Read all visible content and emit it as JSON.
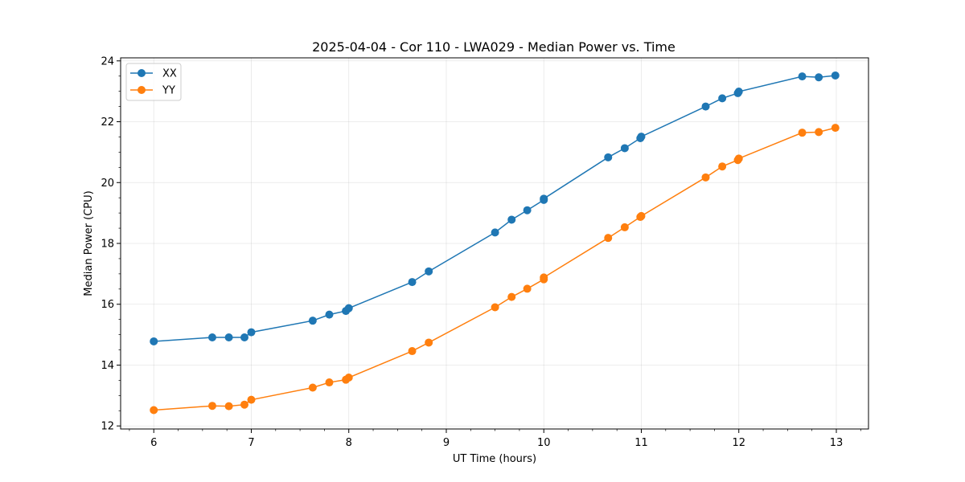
{
  "chart_data": {
    "type": "line",
    "title": "2025-04-04 - Cor 110 - LWA029 - Median Power vs. Time",
    "xlabel": "UT Time (hours)",
    "ylabel": "Median Power (CPU)",
    "xlim": [
      5.66,
      13.33
    ],
    "ylim": [
      11.9,
      24.1
    ],
    "xticks": [
      6,
      7,
      8,
      9,
      10,
      11,
      12,
      13
    ],
    "yticks": [
      12,
      14,
      16,
      18,
      20,
      22,
      24
    ],
    "grid": true,
    "legend_position": "top-left",
    "series": [
      {
        "name": "XX",
        "color": "#1f77b4",
        "x": [
          6.0,
          6.6,
          6.77,
          6.93,
          7.0,
          7.63,
          7.8,
          7.97,
          8.0,
          8.65,
          8.82,
          9.5,
          9.67,
          9.83,
          10.0,
          10.0,
          10.66,
          10.83,
          10.99,
          11.0,
          11.66,
          11.83,
          11.99,
          12.0,
          12.65,
          12.82,
          12.99
        ],
        "y": [
          14.78,
          14.91,
          14.91,
          14.91,
          15.08,
          15.46,
          15.66,
          15.78,
          15.87,
          16.73,
          17.08,
          18.36,
          18.78,
          19.09,
          19.43,
          19.47,
          20.83,
          21.13,
          21.46,
          21.51,
          22.5,
          22.77,
          22.94,
          22.99,
          23.49,
          23.46,
          23.52
        ]
      },
      {
        "name": "YY",
        "color": "#ff7f0e",
        "x": [
          6.0,
          6.6,
          6.77,
          6.93,
          7.0,
          7.63,
          7.8,
          7.97,
          8.0,
          8.65,
          8.82,
          9.5,
          9.67,
          9.83,
          10.0,
          10.0,
          10.66,
          10.83,
          10.99,
          11.0,
          11.66,
          11.83,
          11.99,
          12.0,
          12.65,
          12.82,
          12.99
        ],
        "y": [
          12.52,
          12.66,
          12.65,
          12.7,
          12.86,
          13.26,
          13.43,
          13.52,
          13.59,
          14.46,
          14.74,
          15.9,
          16.24,
          16.51,
          16.82,
          16.88,
          18.18,
          18.53,
          18.87,
          18.9,
          20.17,
          20.53,
          20.74,
          20.79,
          21.64,
          21.66,
          21.8
        ]
      }
    ]
  }
}
